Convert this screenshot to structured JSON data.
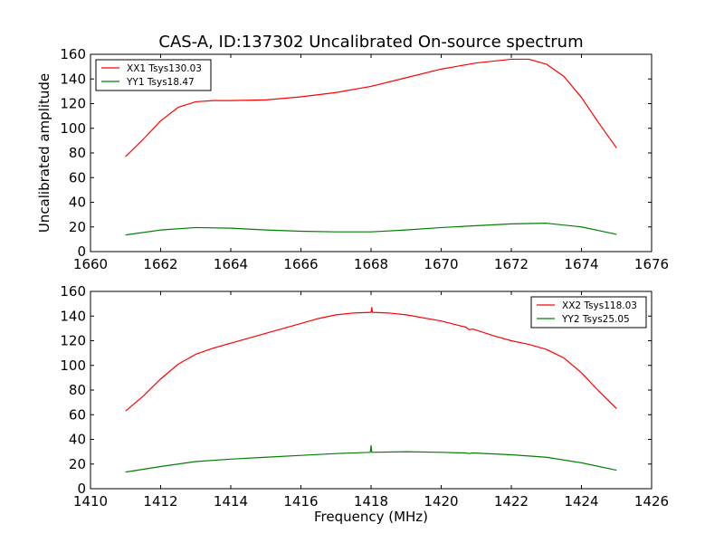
{
  "colors": {
    "xx": "#ff0000",
    "yy": "#008000"
  },
  "chart_data": [
    {
      "type": "line",
      "title": "CAS-A, ID:137302 Uncalibrated On-source spectrum",
      "xlabel": "",
      "ylabel": "Uncalibrated amplitude",
      "xlim": [
        1660,
        1676
      ],
      "ylim": [
        0,
        160
      ],
      "xticks": [
        1660,
        1662,
        1664,
        1666,
        1668,
        1670,
        1672,
        1674,
        1676
      ],
      "yticks": [
        0,
        20,
        40,
        60,
        80,
        100,
        120,
        140,
        160
      ],
      "legend": "top-left",
      "grid": false,
      "series": [
        {
          "name": "XX1 Tsys130.03",
          "color": "#ff0000",
          "x": [
            1661,
            1661.5,
            1662,
            1662.5,
            1663,
            1663.5,
            1664,
            1665,
            1666,
            1667,
            1668,
            1669,
            1670,
            1671,
            1672,
            1672.5,
            1673,
            1673.5,
            1674,
            1674.5,
            1675
          ],
          "y": [
            77,
            91,
            106,
            117,
            121.5,
            122.5,
            122.5,
            123,
            125.5,
            129,
            134,
            141,
            148,
            153,
            156,
            156,
            152,
            142,
            125,
            104,
            84
          ]
        },
        {
          "name": "YY1 Tsys18.47",
          "color": "#008000",
          "x": [
            1661,
            1662,
            1663,
            1664,
            1665,
            1666,
            1667,
            1668,
            1669,
            1670,
            1671,
            1672,
            1673,
            1674,
            1675
          ],
          "y": [
            13.5,
            17.5,
            19.5,
            19,
            17.5,
            16.5,
            16,
            16,
            17.5,
            19.5,
            21,
            22.5,
            23,
            20,
            14
          ]
        }
      ]
    },
    {
      "type": "line",
      "title": "",
      "xlabel": "Frequency (MHz)",
      "ylabel": "",
      "xlim": [
        1410,
        1426
      ],
      "ylim": [
        0,
        160
      ],
      "xticks": [
        1410,
        1412,
        1414,
        1416,
        1418,
        1420,
        1422,
        1424,
        1426
      ],
      "yticks": [
        0,
        20,
        40,
        60,
        80,
        100,
        120,
        140,
        160
      ],
      "legend": "top-right",
      "grid": false,
      "series": [
        {
          "name": "XX2 Tsys118.03",
          "color": "#ff0000",
          "x": [
            1411,
            1411.5,
            1412,
            1412.5,
            1413,
            1413.5,
            1414,
            1415,
            1416,
            1416.5,
            1417,
            1417.5,
            1418,
            1418.02,
            1418.04,
            1418.5,
            1419,
            1420,
            1420.7,
            1420.8,
            1420.9,
            1421.5,
            1422,
            1422.5,
            1423,
            1423.5,
            1424,
            1424.5,
            1425
          ],
          "y": [
            63,
            75,
            89,
            101,
            109,
            114,
            118,
            126,
            134,
            138,
            141,
            142.5,
            143,
            147,
            143,
            142.5,
            141,
            136,
            131,
            129,
            129.5,
            124,
            120,
            117,
            113,
            106,
            94,
            79,
            65
          ]
        },
        {
          "name": "YY2 Tsys25.05",
          "color": "#008000",
          "x": [
            1411,
            1412,
            1413,
            1414,
            1415,
            1416,
            1417,
            1417.98,
            1418,
            1418.02,
            1419,
            1420,
            1420.7,
            1420.8,
            1420.9,
            1422,
            1423,
            1424,
            1425
          ],
          "y": [
            13.5,
            18,
            22,
            24,
            25.5,
            27,
            28.5,
            29.5,
            35,
            29.5,
            30,
            29.5,
            29,
            28.5,
            29,
            27.5,
            25.5,
            21,
            15
          ]
        }
      ]
    }
  ]
}
